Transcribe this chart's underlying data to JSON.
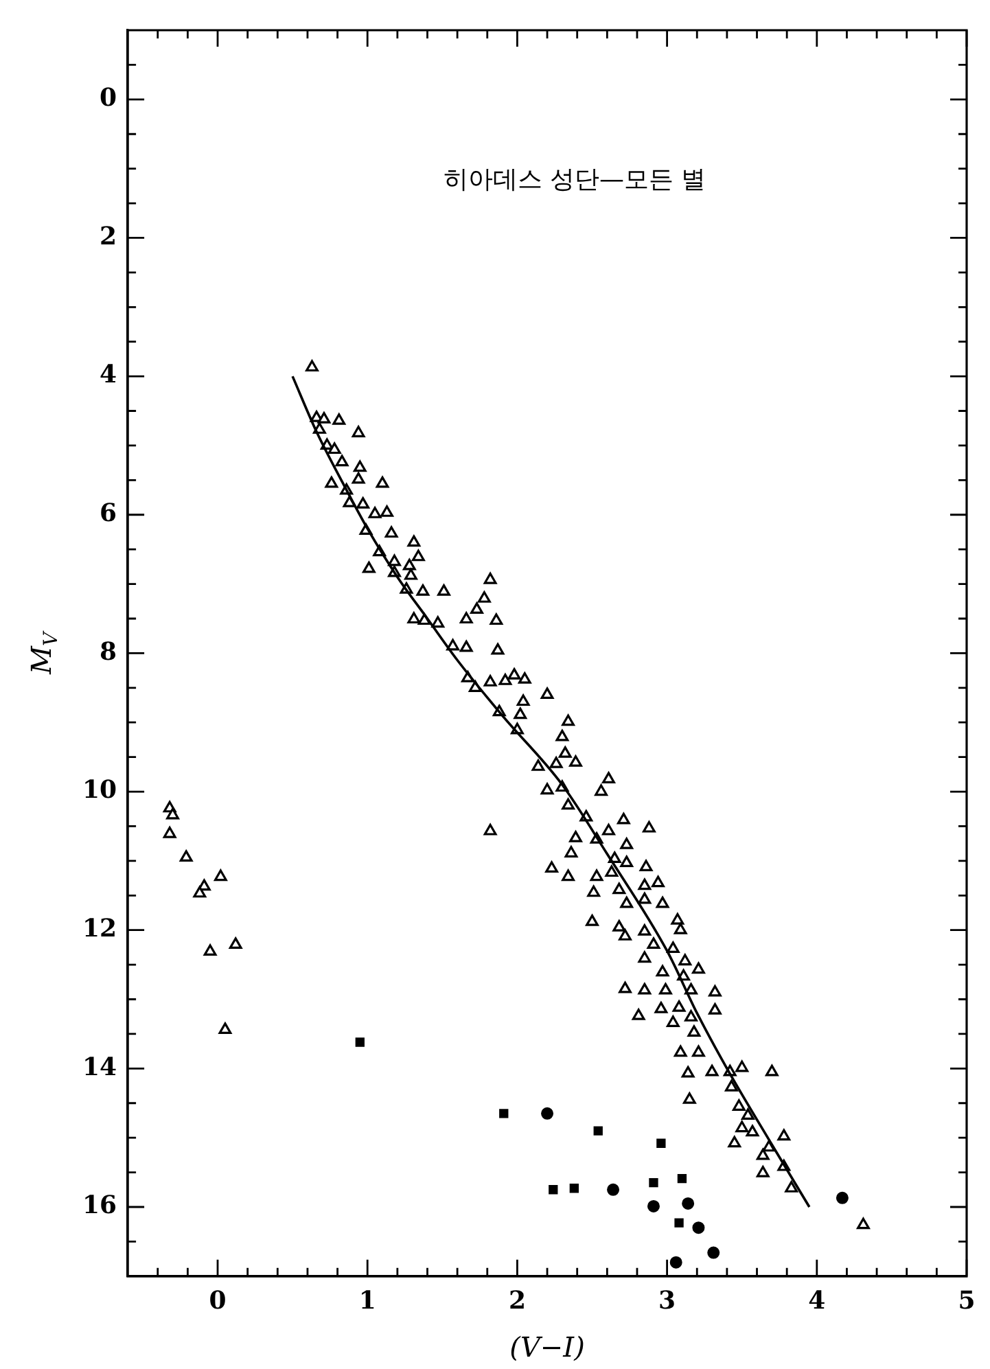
{
  "chart_data": {
    "type": "scatter",
    "title": "히아데스 성단—모든 별",
    "xlabel": "(V−I)",
    "ylabel": "M$_{V}$",
    "xlim": [
      -0.6,
      5
    ],
    "ylim": [
      17,
      -1
    ],
    "xticks": [
      {
        "value": -0.4,
        "label": null
      },
      {
        "value": -0.2,
        "label": null
      },
      0,
      {
        "value": 0.2,
        "label": null
      },
      {
        "value": 0.4,
        "label": null
      },
      {
        "value": 0.6,
        "label": null
      },
      {
        "value": 0.8,
        "label": null
      },
      1,
      {
        "value": 1.2,
        "label": null
      },
      {
        "value": 1.4,
        "label": null
      },
      {
        "value": 1.6,
        "label": null
      },
      {
        "value": 1.8,
        "label": null
      },
      2,
      {
        "value": 2.2,
        "label": null
      },
      {
        "value": 2.4,
        "label": null
      },
      {
        "value": 2.6,
        "label": null
      },
      {
        "value": 2.8,
        "label": null
      },
      3,
      {
        "value": 3.2,
        "label": null
      },
      {
        "value": 3.4,
        "label": null
      },
      {
        "value": 3.6,
        "label": null
      },
      {
        "value": 3.8,
        "label": null
      },
      4,
      {
        "value": 4.2,
        "label": null
      },
      {
        "value": 4.4,
        "label": null
      },
      {
        "value": 4.6,
        "label": null
      },
      {
        "value": 4.8,
        "label": null
      },
      5
    ],
    "yticks": [
      {
        "value": -0.5,
        "label": null
      },
      0,
      {
        "value": 0.5,
        "label": null
      },
      {
        "value": 1,
        "label": null
      },
      {
        "value": 1.5,
        "label": null
      },
      2,
      {
        "value": 2.5,
        "label": null
      },
      {
        "value": 3,
        "label": null
      },
      {
        "value": 3.5,
        "label": null
      },
      4,
      {
        "value": 4.5,
        "label": null
      },
      {
        "value": 5,
        "label": null
      },
      {
        "value": 5.5,
        "label": null
      },
      6,
      {
        "value": 6.5,
        "label": null
      },
      {
        "value": 7,
        "label": null
      },
      {
        "value": 7.5,
        "label": null
      },
      8,
      {
        "value": 8.5,
        "label": null
      },
      {
        "value": 9,
        "label": null
      },
      {
        "value": 9.5,
        "label": null
      },
      10,
      {
        "value": 10.5,
        "label": null
      },
      {
        "value": 11,
        "label": null
      },
      {
        "value": 11.5,
        "label": null
      },
      12,
      {
        "value": 12.5,
        "label": null
      },
      {
        "value": 13,
        "label": null
      },
      {
        "value": 13.5,
        "label": null
      },
      14,
      {
        "value": 14.5,
        "label": null
      },
      {
        "value": 15,
        "label": null
      },
      {
        "value": 15.5,
        "label": null
      },
      16,
      {
        "value": 16.5,
        "label": null
      }
    ],
    "grid": false,
    "legend": false,
    "series": [
      {
        "type": "scatter",
        "marker": "triangle",
        "color": "#000000",
        "x": [
          0.63,
          0.66,
          0.71,
          0.81,
          0.94,
          0.68,
          0.73,
          0.78,
          0.83,
          0.95,
          0.94,
          1.1,
          0.76,
          0.86,
          0.88,
          0.97,
          1.05,
          1.13,
          0.99,
          1.16,
          1.08,
          1.18,
          1.31,
          1.34,
          1.01,
          1.28,
          1.18,
          1.29,
          1.26,
          1.37,
          1.51,
          1.82,
          1.78,
          1.73,
          1.66,
          1.86,
          1.31,
          1.38,
          1.47,
          1.57,
          1.66,
          1.87,
          1.67,
          1.72,
          1.82,
          1.92,
          2.05,
          2.04,
          2.2,
          1.88,
          2.02,
          2.34,
          2.3,
          2.0,
          1.98,
          2.32,
          2.39,
          2.26,
          2.14,
          2.61,
          2.56,
          2.2,
          2.3,
          2.34,
          2.46,
          2.71,
          2.88,
          2.61,
          2.39,
          2.53,
          2.36,
          2.23,
          2.34,
          2.73,
          2.65,
          2.86,
          2.73,
          2.63,
          2.53,
          2.68,
          2.85,
          2.94,
          2.51,
          2.97,
          2.85,
          2.73,
          3.07,
          3.09,
          2.68,
          2.5,
          2.72,
          2.85,
          2.91,
          3.04,
          2.85,
          3.12,
          3.21,
          2.97,
          3.11,
          2.72,
          2.85,
          2.99,
          3.32,
          3.16,
          2.81,
          2.96,
          3.08,
          3.32,
          3.04,
          3.16,
          3.18,
          3.09,
          3.21,
          3.14,
          3.3,
          3.42,
          3.5,
          3.7,
          3.15,
          3.43,
          3.48,
          3.54,
          3.5,
          3.57,
          3.45,
          3.78,
          3.68,
          3.64,
          3.78,
          3.64,
          3.83,
          4.31,
          1.82,
          -0.32,
          -0.3,
          -0.32,
          -0.21,
          0.02,
          -0.09,
          -0.12,
          0.12,
          -0.05,
          0.05
        ],
        "values": [
          3.87,
          4.6,
          4.62,
          4.64,
          4.82,
          4.77,
          5.0,
          5.06,
          5.24,
          5.32,
          5.49,
          5.55,
          5.55,
          5.65,
          5.83,
          5.85,
          5.99,
          5.97,
          6.23,
          6.27,
          6.54,
          6.68,
          6.4,
          6.61,
          6.78,
          6.74,
          6.84,
          6.88,
          7.08,
          7.11,
          7.11,
          6.94,
          7.21,
          7.37,
          7.51,
          7.53,
          7.51,
          7.53,
          7.57,
          7.9,
          7.92,
          7.96,
          8.36,
          8.5,
          8.42,
          8.4,
          8.38,
          8.7,
          8.6,
          8.85,
          8.89,
          8.99,
          9.21,
          9.11,
          8.32,
          9.45,
          9.58,
          9.6,
          9.64,
          9.82,
          10.0,
          9.98,
          9.94,
          10.2,
          10.37,
          10.41,
          10.53,
          10.57,
          10.67,
          10.69,
          10.89,
          11.11,
          11.23,
          10.77,
          10.97,
          11.09,
          11.03,
          11.17,
          11.23,
          11.42,
          11.36,
          11.32,
          11.46,
          11.62,
          11.56,
          11.62,
          11.86,
          12.0,
          11.96,
          11.88,
          12.09,
          12.02,
          12.21,
          12.27,
          12.41,
          12.45,
          12.57,
          12.61,
          12.67,
          12.85,
          12.87,
          12.87,
          12.9,
          12.87,
          13.24,
          13.14,
          13.12,
          13.16,
          13.34,
          13.26,
          13.48,
          13.77,
          13.77,
          14.07,
          14.05,
          14.05,
          13.99,
          14.05,
          14.45,
          14.27,
          14.55,
          14.68,
          14.86,
          14.92,
          15.08,
          14.98,
          15.14,
          15.26,
          15.42,
          15.51,
          15.73,
          16.26,
          10.57,
          10.24,
          10.34,
          10.61,
          10.95,
          11.23,
          11.37,
          11.47,
          12.21,
          12.31,
          13.44
        ]
      },
      {
        "type": "scatter",
        "marker": "square",
        "color": "#000000",
        "x": [
          0.95,
          1.91,
          2.54,
          2.96,
          2.24,
          2.38,
          2.91,
          3.1,
          3.08
        ],
        "values": [
          13.62,
          14.65,
          14.9,
          15.08,
          15.75,
          15.73,
          15.65,
          15.59,
          16.23
        ]
      },
      {
        "type": "scatter",
        "marker": "circle",
        "color": "#000000",
        "x": [
          2.2,
          2.64,
          2.91,
          3.14,
          3.21,
          3.31,
          3.06,
          4.17
        ],
        "values": [
          14.65,
          15.75,
          15.99,
          15.95,
          16.3,
          16.66,
          16.8,
          15.87
        ]
      },
      {
        "type": "line",
        "marker": "none",
        "line_style": "solid",
        "color": "#000000",
        "x": [
          0.5,
          0.66,
          0.85,
          1.0,
          1.2,
          1.4,
          1.6,
          1.9,
          2.3,
          2.6,
          3.0,
          3.2,
          3.4,
          3.7,
          3.95
        ],
        "values": [
          4.0,
          4.8,
          5.6,
          6.2,
          6.9,
          7.5,
          8.1,
          8.9,
          9.9,
          10.9,
          12.3,
          13.2,
          14.0,
          15.1,
          16.0
        ]
      }
    ]
  }
}
